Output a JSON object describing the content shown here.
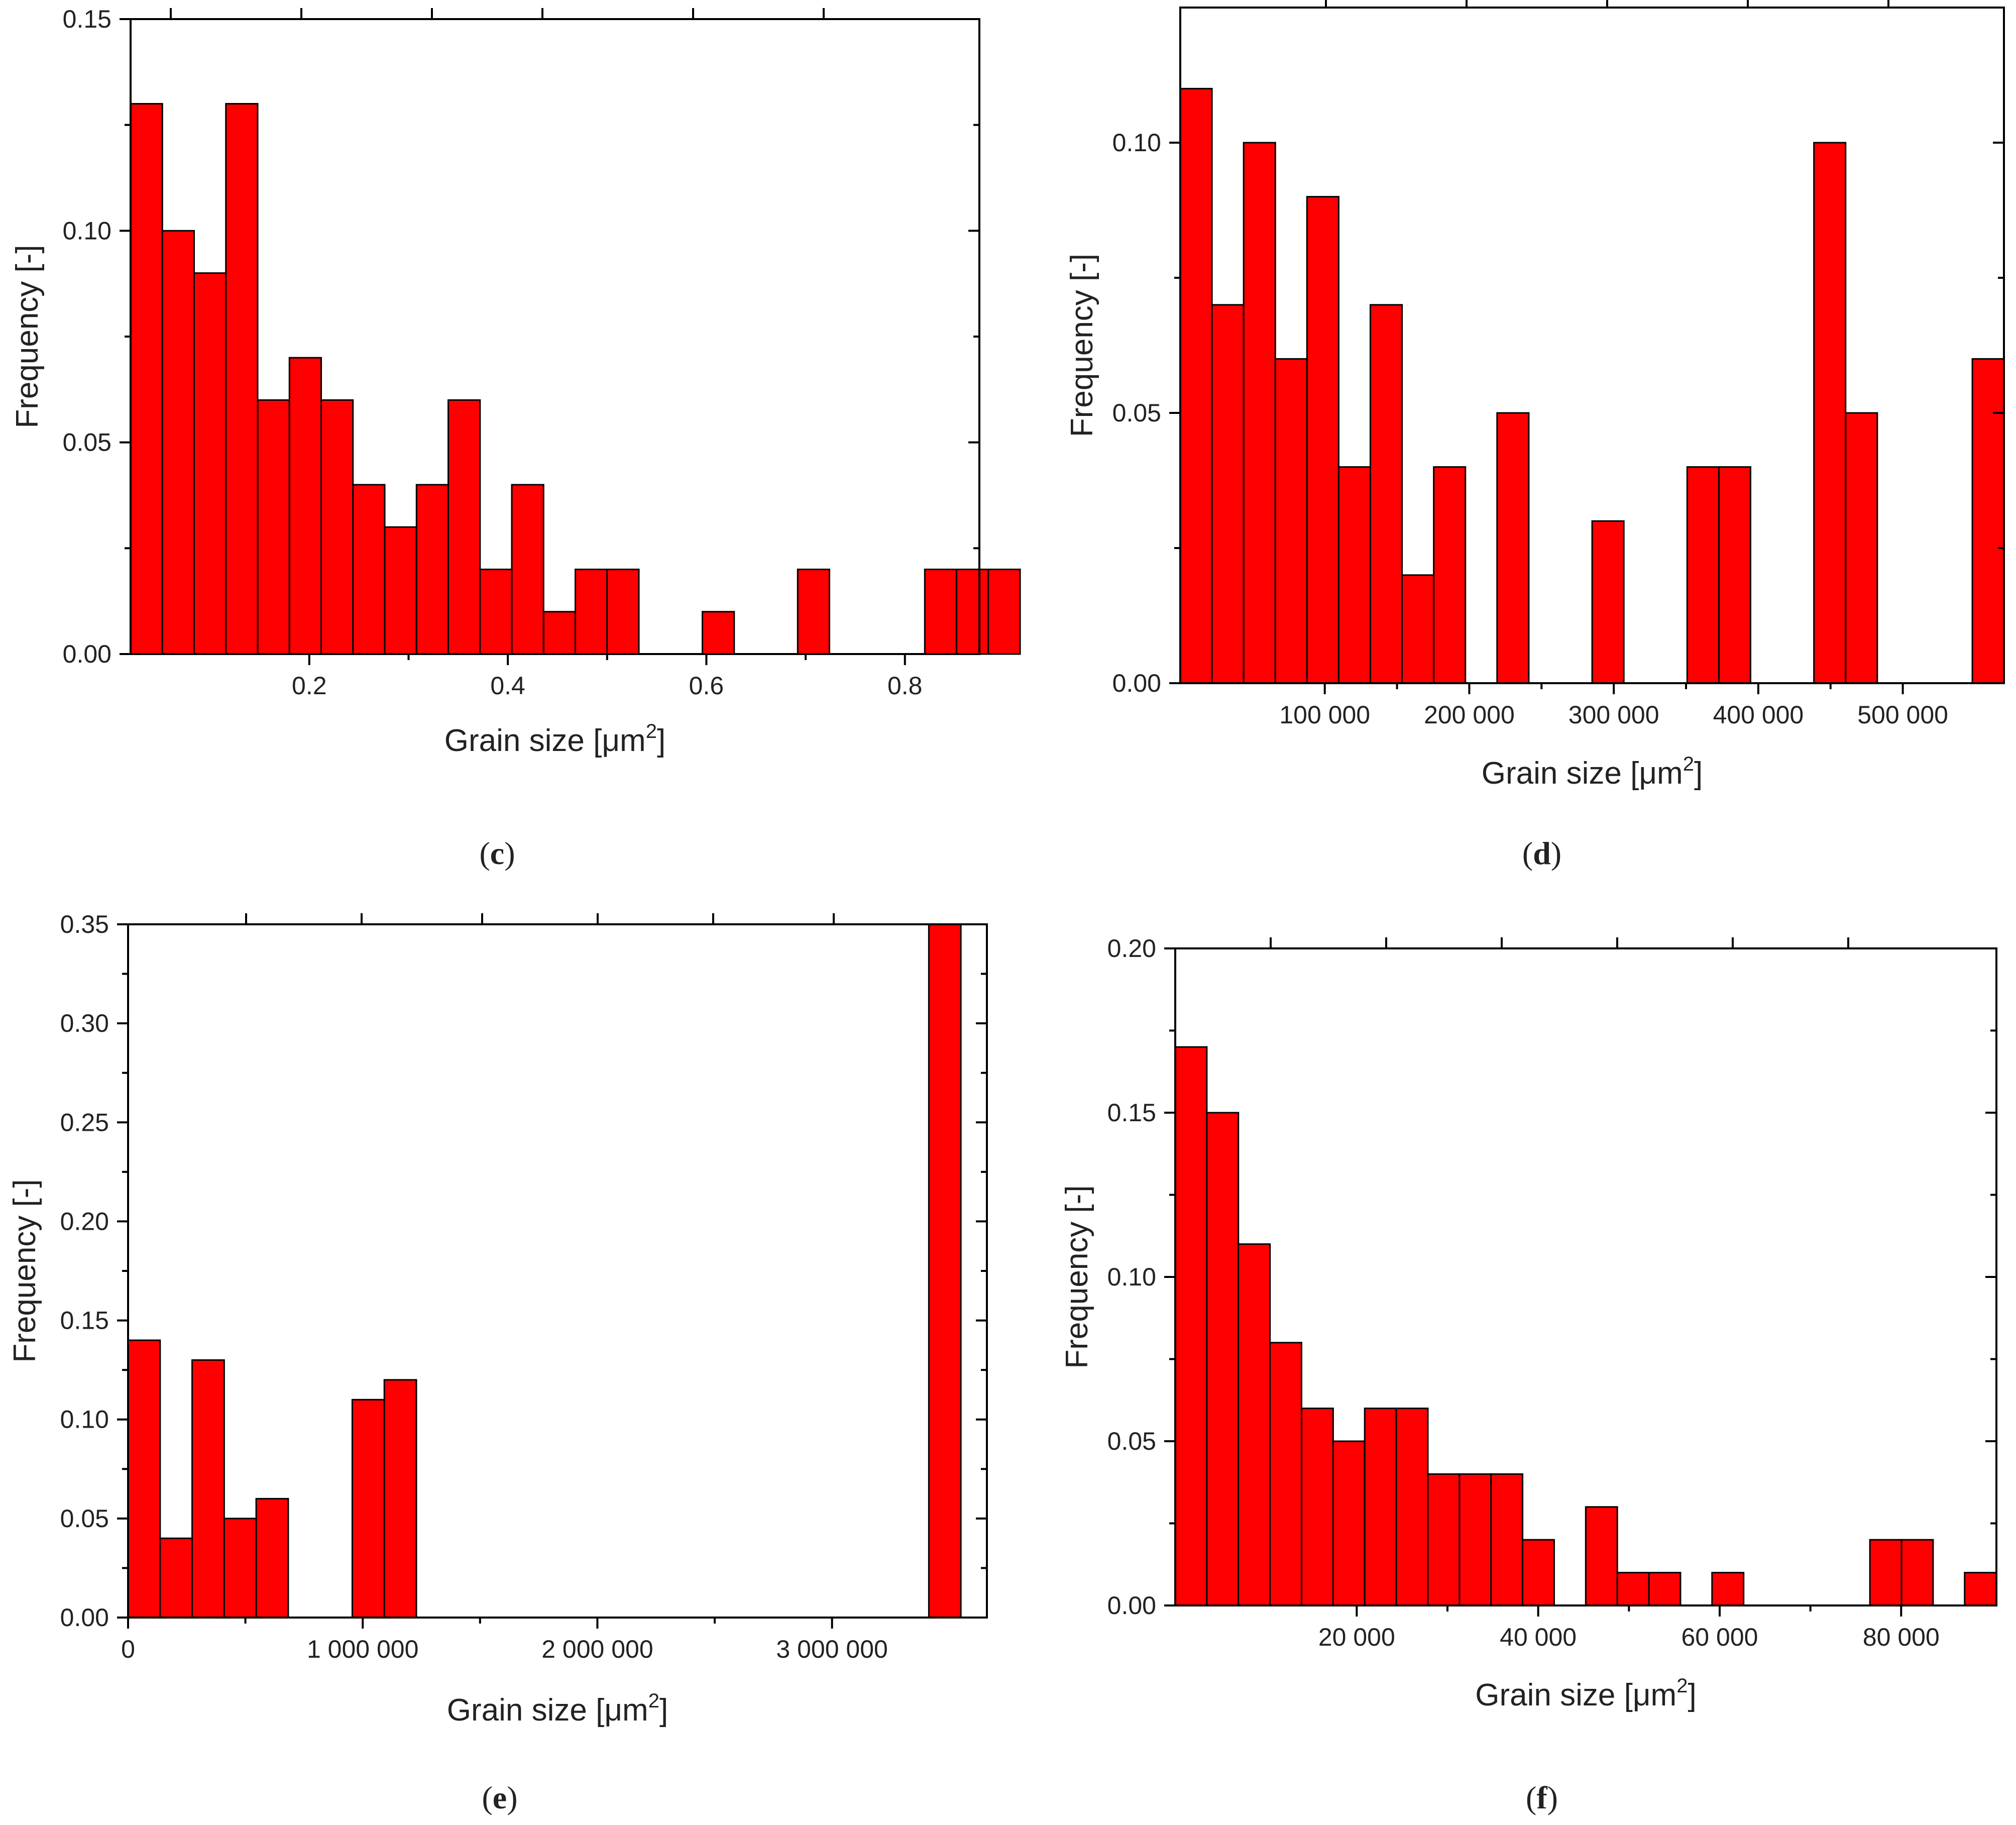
{
  "figure": {
    "bar_color": "#ff0000",
    "edge_color": "#000000"
  },
  "chart_data": [
    {
      "id": "c",
      "panel_label": "c",
      "type": "bar",
      "xlabel": "Grain size [μm",
      "xlabel_superscript": "2",
      "xlabel_suffix": "]",
      "ylabel": "Frequency [-]",
      "xlim": [
        0.02,
        0.875
      ],
      "ylim": [
        0,
        0.15
      ],
      "xticks": [
        0.2,
        0.4,
        0.6,
        0.8
      ],
      "xtick_labels": [
        "0.2",
        "0.4",
        "0.6",
        "0.8"
      ],
      "yticks": [
        0,
        0.05,
        0.1,
        0.15
      ],
      "ytick_labels": [
        "0.00",
        "0.05",
        "0.10",
        "0.15"
      ],
      "bin_start": 0.02,
      "bin_width": 0.032,
      "values": [
        0.13,
        0.1,
        0.09,
        0.13,
        0.06,
        0.07,
        0.06,
        0.04,
        0.03,
        0.04,
        0.06,
        0.02,
        0.04,
        0.01,
        0.02,
        0.02,
        0,
        0,
        0.01,
        0,
        0,
        0.02,
        0,
        0,
        0,
        0.02,
        0.02,
        0.02
      ]
    },
    {
      "id": "d",
      "panel_label": "d",
      "type": "bar",
      "xlabel": "Grain size [μm",
      "xlabel_superscript": "2",
      "xlabel_suffix": "]",
      "ylabel": "Frequency [-]",
      "xlim": [
        0,
        570000
      ],
      "ylim": [
        0,
        0.125
      ],
      "xticks": [
        100000,
        200000,
        300000,
        400000,
        500000
      ],
      "xtick_labels": [
        "100 000",
        "200 000",
        "300 000",
        "400 000",
        "500 000"
      ],
      "yticks": [
        0,
        0.05,
        0.1
      ],
      "ytick_labels": [
        "0.00",
        "0.05",
        "0.10"
      ],
      "bin_start": 0,
      "bin_width": 21925,
      "values": [
        0.11,
        0.07,
        0.1,
        0.06,
        0.09,
        0.04,
        0.07,
        0.02,
        0.04,
        0,
        0.05,
        0,
        0,
        0.03,
        0,
        0,
        0.04,
        0.04,
        0,
        0,
        0.1,
        0.05,
        0,
        0,
        0,
        0.06
      ]
    },
    {
      "id": "e",
      "panel_label": "e",
      "type": "bar",
      "xlabel": "Grain size [μm",
      "xlabel_superscript": "2",
      "xlabel_suffix": "]",
      "ylabel": "Frequency [-]",
      "xlim": [
        0,
        3660000
      ],
      "ylim": [
        0,
        0.35
      ],
      "xticks": [
        0,
        1000000,
        2000000,
        3000000
      ],
      "xtick_labels": [
        "0",
        "1 000 000",
        "2 000 000",
        "3 000 000"
      ],
      "yticks": [
        0,
        0.05,
        0.1,
        0.15,
        0.2,
        0.25,
        0.3,
        0.35
      ],
      "ytick_labels": [
        "0.00",
        "0.05",
        "0.10",
        "0.15",
        "0.20",
        "0.25",
        "0.30",
        "0.35"
      ],
      "bin_start": 0,
      "bin_width": 136500,
      "values": [
        0.14,
        0.04,
        0.13,
        0.05,
        0.06,
        0,
        0,
        0.11,
        0.12,
        0,
        0,
        0,
        0,
        0,
        0,
        0,
        0,
        0,
        0,
        0,
        0,
        0,
        0,
        0,
        0,
        0.35
      ]
    },
    {
      "id": "f",
      "panel_label": "f",
      "type": "bar",
      "xlabel": "Grain size [μm",
      "xlabel_superscript": "2",
      "xlabel_suffix": "]",
      "ylabel": "Frequency [-]",
      "xlim": [
        0,
        90500
      ],
      "ylim": [
        0,
        0.2
      ],
      "xticks": [
        20000,
        40000,
        60000,
        80000
      ],
      "xtick_labels": [
        "20 000",
        "40 000",
        "60 000",
        "80 000"
      ],
      "yticks": [
        0,
        0.05,
        0.1,
        0.15,
        0.2
      ],
      "ytick_labels": [
        "0.00",
        "0.05",
        "0.10",
        "0.15",
        "0.20"
      ],
      "bin_start": 0,
      "bin_width": 3480,
      "values": [
        0.17,
        0.15,
        0.11,
        0.08,
        0.06,
        0.05,
        0.06,
        0.06,
        0.04,
        0.04,
        0.04,
        0.02,
        0,
        0.03,
        0.01,
        0.01,
        0,
        0.01,
        0,
        0,
        0,
        0,
        0.02,
        0.02,
        0,
        0.01
      ]
    }
  ]
}
